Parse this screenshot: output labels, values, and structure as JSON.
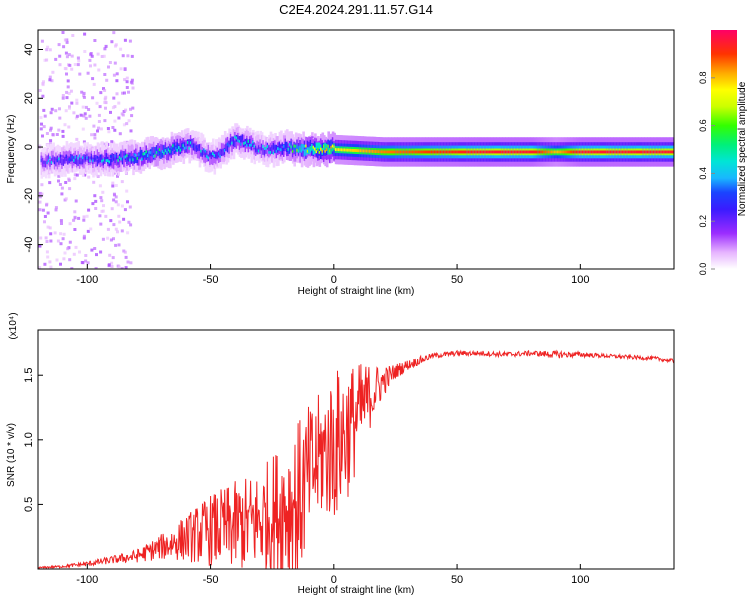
{
  "title": "C2E4.2024.291.11.57.G14",
  "chart_data": [
    {
      "type": "heatmap",
      "xlabel": "Height of straight line (km)",
      "ylabel": "Frequency (Hz)",
      "xlim": [
        -120,
        138
      ],
      "ylim": [
        -50,
        48
      ],
      "xticks": [
        -100,
        -50,
        0,
        50,
        100
      ],
      "yticks": [
        -40,
        -20,
        0,
        20,
        40
      ],
      "colorbar": {
        "label": "Normalized spectral amplitude",
        "range": [
          0,
          1
        ],
        "ticks": [
          0.0,
          0.2,
          0.4,
          0.6,
          0.8
        ],
        "tick_labels": [
          "0.0",
          "0.2",
          "0.4",
          "0.6",
          "0.8"
        ]
      },
      "ridge": {
        "heights": [
          -118,
          -110,
          -100,
          -90,
          -80,
          -70,
          -62,
          -58,
          -52,
          -48,
          -44,
          -40,
          -36,
          -32,
          -28,
          -24,
          -20,
          -15,
          -10,
          0,
          20,
          40,
          60,
          80,
          90,
          100,
          120,
          138
        ],
        "frequency": [
          -6,
          -5,
          -5,
          -5,
          -4,
          -2,
          0,
          1,
          -3,
          -4,
          0,
          3,
          2,
          0,
          -1,
          -1,
          0,
          -1,
          -1,
          -1,
          -2,
          -2,
          -2,
          -2,
          -2,
          -2,
          -2,
          -2
        ],
        "amplitude": [
          0.25,
          0.3,
          0.3,
          0.35,
          0.4,
          0.45,
          0.4,
          0.35,
          0.3,
          0.3,
          0.35,
          0.35,
          0.35,
          0.3,
          0.3,
          0.35,
          0.4,
          0.5,
          0.6,
          0.75,
          0.85,
          0.9,
          0.95,
          0.95,
          0.8,
          0.95,
          0.95,
          0.95
        ]
      },
      "grid": false
    },
    {
      "type": "line",
      "xlabel": "Height of straight line (km)",
      "ylabel": "SNR (10 * v/v)",
      "y_multiplier": "(x10⁴)",
      "xlim": [
        -120,
        138
      ],
      "ylim": [
        0,
        1.85
      ],
      "xticks": [
        -100,
        -50,
        0,
        50,
        100
      ],
      "yticks": [
        0.5,
        1.0,
        1.5
      ],
      "ytick_labels": [
        "0.5",
        "1.0",
        "1.5"
      ],
      "color": "#ee2222",
      "series": [
        {
          "x": [
            -120,
            -110,
            -100,
            -90,
            -80,
            -70,
            -60,
            -50,
            -40,
            -30,
            -20,
            -15,
            -10,
            -5,
            0,
            5,
            10,
            15,
            20,
            25,
            30,
            40,
            50,
            60,
            70,
            80,
            90,
            100,
            110,
            120,
            130,
            138
          ],
          "values": [
            0.01,
            0.02,
            0.04,
            0.07,
            0.1,
            0.17,
            0.24,
            0.3,
            0.33,
            0.37,
            0.48,
            0.5,
            0.72,
            0.88,
            0.95,
            1.05,
            1.2,
            1.35,
            1.45,
            1.53,
            1.58,
            1.65,
            1.67,
            1.67,
            1.66,
            1.67,
            1.66,
            1.66,
            1.65,
            1.64,
            1.63,
            1.61
          ],
          "jitter": [
            0.005,
            0.01,
            0.02,
            0.03,
            0.05,
            0.1,
            0.18,
            0.28,
            0.35,
            0.4,
            0.55,
            0.65,
            0.55,
            0.5,
            0.6,
            0.55,
            0.4,
            0.25,
            0.12,
            0.06,
            0.04,
            0.02,
            0.02,
            0.02,
            0.02,
            0.02,
            0.03,
            0.02,
            0.015,
            0.015,
            0.015,
            0.015
          ]
        }
      ],
      "grid": false
    }
  ]
}
